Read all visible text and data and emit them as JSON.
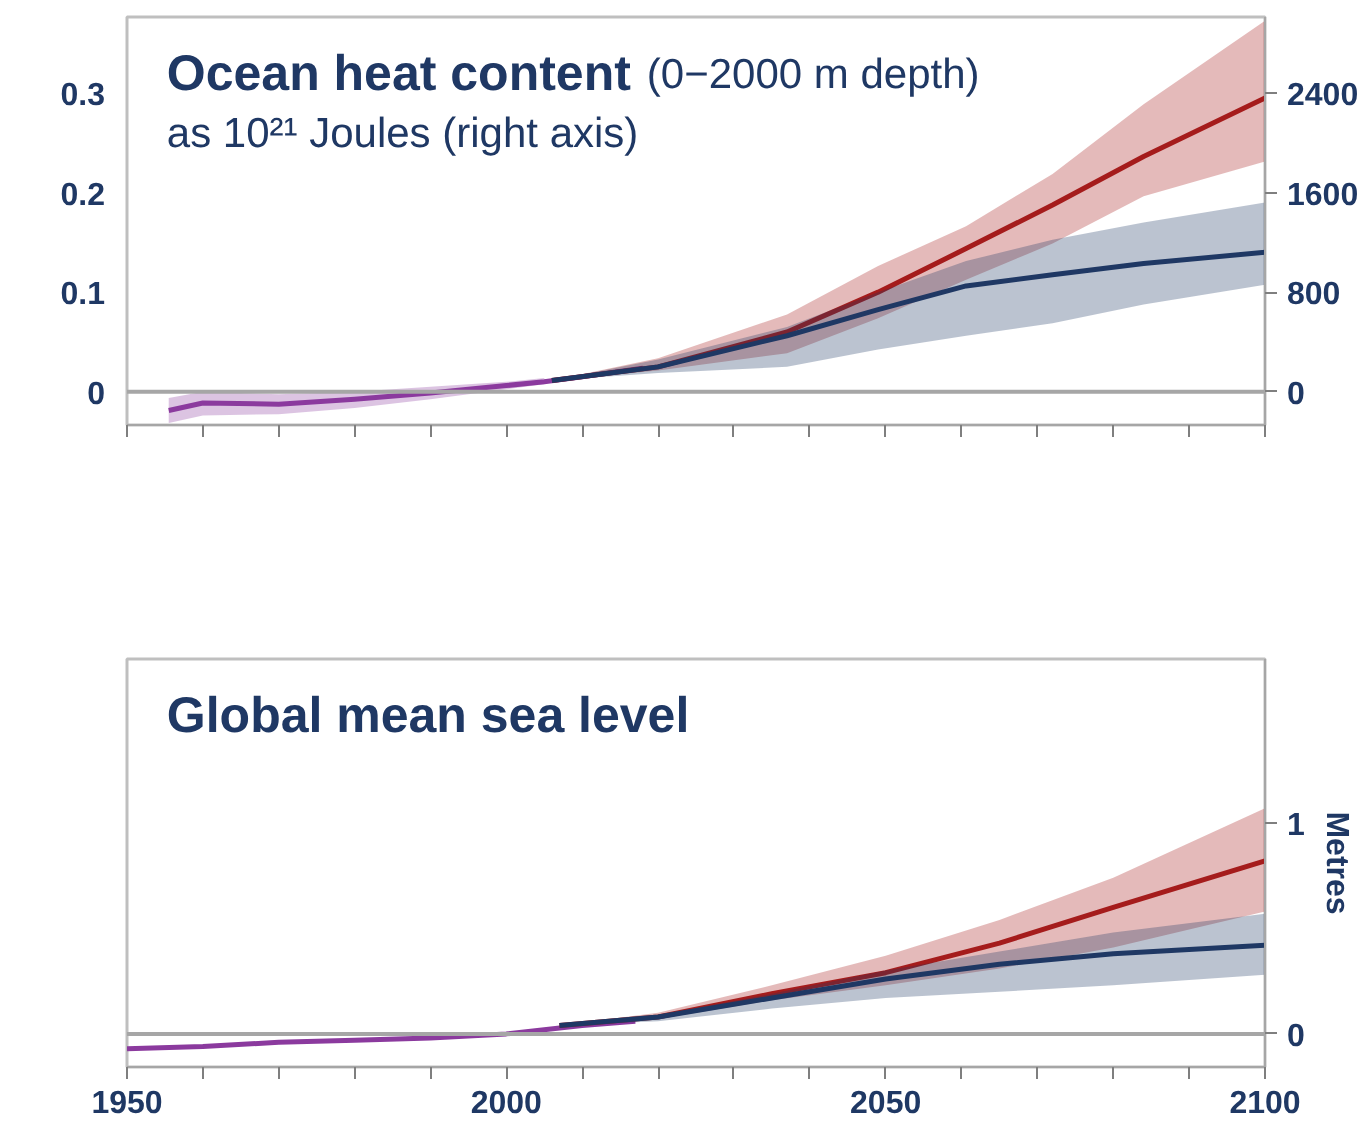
{
  "chart_data": [
    {
      "type": "line",
      "title": "Ocean heat content",
      "subtitle": "(0−2000 m depth)",
      "annotations": [
        "as 10²¹ Joules (right axis)"
      ],
      "xlim": [
        1950,
        2100
      ],
      "xticks": [
        {
          "value": 1950,
          "label": null
        },
        {
          "value": 1960,
          "label": null
        },
        {
          "value": 1970,
          "label": null
        },
        {
          "value": 1980,
          "label": null
        },
        {
          "value": 1990,
          "label": null
        },
        {
          "value": 2000,
          "label": null
        },
        {
          "value": 2010,
          "label": null
        },
        {
          "value": 2020,
          "label": null
        },
        {
          "value": 2030,
          "label": null
        },
        {
          "value": 2040,
          "label": null
        },
        {
          "value": 2050,
          "label": null
        },
        {
          "value": 2060,
          "label": null
        },
        {
          "value": 2070,
          "label": null
        },
        {
          "value": 2080,
          "label": null
        },
        {
          "value": 2090,
          "label": null
        },
        {
          "value": 2100,
          "label": null
        }
      ],
      "ylim": [
        -0.033,
        0.376
      ],
      "yticks": [
        0,
        0.1,
        0.2,
        0.3
      ],
      "y2lim": [
        -267,
        3010
      ],
      "y2ticks": [
        0,
        800,
        1600,
        2400
      ],
      "tick_labels": "y",
      "grid": false,
      "ref_lines": [
        {
          "axis": "y2",
          "value": 0,
          "color": "#a6a6a6"
        }
      ],
      "series": [
        {
          "axis": "y2",
          "color": "#8b3a9e",
          "x": [
            1955.5,
            1960,
            1970,
            1980,
            1990,
            2000,
            2005,
            2010,
            2018
          ],
          "values": [
            -150,
            -90,
            -100,
            -60,
            -10,
            50,
            80,
            120,
            190
          ],
          "lower": [
            -250,
            -190,
            -180,
            -130,
            -60,
            20,
            60,
            null,
            null
          ],
          "upper": [
            -50,
            0,
            -20,
            0,
            40,
            80,
            110,
            null,
            null
          ]
        },
        {
          "axis": "y2",
          "color": "#a51c1c",
          "x": [
            2006,
            2020,
            2037,
            2049,
            2060.6,
            2072,
            2084,
            2100
          ],
          "values": [
            90,
            200,
            480,
            800,
            1150,
            1500,
            1890,
            2360
          ],
          "lower": [
            90,
            170,
            310,
            590,
            900,
            1190,
            1570,
            1850
          ],
          "upper": [
            90,
            270,
            620,
            1010,
            1330,
            1750,
            2310,
            2980
          ]
        },
        {
          "axis": "y2",
          "color": "#1f3864",
          "x": [
            2006,
            2020,
            2037,
            2049,
            2060.6,
            2072,
            2084,
            2100
          ],
          "values": [
            90,
            200,
            450,
            660,
            850,
            940,
            1030,
            1120
          ],
          "lower": [
            90,
            150,
            200,
            340,
            450,
            550,
            700,
            860
          ],
          "upper": [
            90,
            260,
            520,
            800,
            1050,
            1220,
            1360,
            1520
          ]
        }
      ]
    },
    {
      "type": "line",
      "title": "Global mean sea level",
      "y2label": "Metres",
      "xlim": [
        1950,
        2100
      ],
      "xticks": [
        1950,
        {
          "value": 1960,
          "label": null
        },
        {
          "value": 1970,
          "label": null
        },
        {
          "value": 1980,
          "label": null
        },
        {
          "value": 1990,
          "label": null
        },
        2000,
        {
          "value": 2010,
          "label": null
        },
        {
          "value": 2020,
          "label": null
        },
        {
          "value": 2030,
          "label": null
        },
        {
          "value": 2040,
          "label": null
        },
        2050,
        {
          "value": 2060,
          "label": null
        },
        {
          "value": 2070,
          "label": null
        },
        {
          "value": 2080,
          "label": null
        },
        {
          "value": 2090,
          "label": null
        },
        2100
      ],
      "y2lim": [
        -0.157,
        1.777
      ],
      "y2ticks": [
        0,
        1
      ],
      "grid": false,
      "ref_lines": [
        {
          "axis": "y2",
          "value": 0,
          "color": "#a6a6a6"
        }
      ],
      "series": [
        {
          "axis": "y2",
          "color": "#8b3a9e",
          "x": [
            1950,
            1960,
            1970,
            1980,
            1990,
            2000,
            2010,
            2017
          ],
          "values": [
            -0.07,
            -0.06,
            -0.04,
            -0.03,
            -0.02,
            0.0,
            0.04,
            0.06
          ]
        },
        {
          "axis": "y2",
          "color": "#a51c1c",
          "x": [
            2007,
            2020,
            2035,
            2050,
            2065,
            2080,
            2100
          ],
          "values": [
            0.04,
            0.08,
            0.19,
            0.29,
            0.43,
            0.6,
            0.82
          ],
          "lower": [
            0.04,
            0.07,
            0.16,
            0.23,
            0.31,
            0.41,
            0.58
          ],
          "upper": [
            0.04,
            0.1,
            0.23,
            0.37,
            0.54,
            0.74,
            1.07
          ]
        },
        {
          "axis": "y2",
          "color": "#1f3864",
          "x": [
            2007,
            2020,
            2035,
            2050,
            2065,
            2080,
            2100
          ],
          "values": [
            0.04,
            0.08,
            0.17,
            0.26,
            0.33,
            0.38,
            0.42
          ],
          "lower": [
            0.04,
            0.06,
            0.12,
            0.17,
            0.2,
            0.23,
            0.28
          ],
          "upper": [
            0.04,
            0.09,
            0.19,
            0.3,
            0.39,
            0.48,
            0.57
          ]
        }
      ]
    }
  ]
}
